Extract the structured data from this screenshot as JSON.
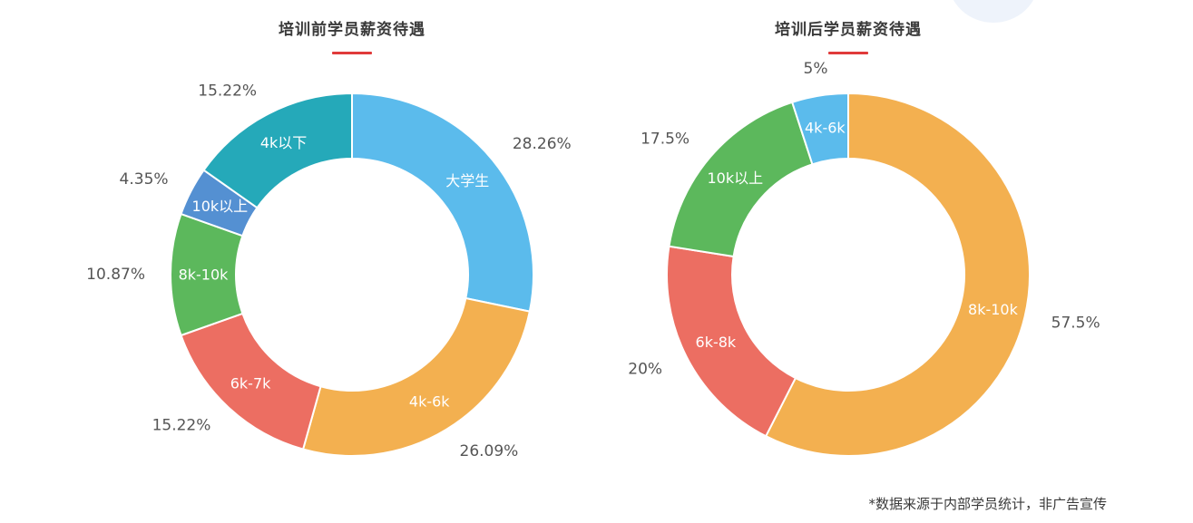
{
  "colors": {
    "blue_light": "#5bbbec",
    "orange": "#f3b050",
    "red": "#ec6e62",
    "green": "#5cb85c",
    "blue": "#5490d2",
    "teal": "#25a9b9",
    "title_underline": "#e03a3a"
  },
  "footnote": "*数据来源于内部学员统计，非广告宣传",
  "chart_data": [
    {
      "type": "pie",
      "title": "培训前学员薪资待遇",
      "slices": [
        {
          "label": "大学生",
          "value": 28.26,
          "value_label": "28.26%",
          "color": "#5bbbec"
        },
        {
          "label": "4k-6k",
          "value": 26.09,
          "value_label": "26.09%",
          "color": "#f3b050"
        },
        {
          "label": "6k-7k",
          "value": 15.22,
          "value_label": "15.22%",
          "color": "#ec6e62"
        },
        {
          "label": "8k-10k",
          "value": 10.87,
          "value_label": "10.87%",
          "color": "#5cb85c"
        },
        {
          "label": "10k以上",
          "value": 4.35,
          "value_label": "4.35%",
          "color": "#5490d2"
        },
        {
          "label": "4k以下",
          "value": 15.22,
          "value_label": "15.22%",
          "color": "#25a9b9"
        }
      ]
    },
    {
      "type": "pie",
      "title": "培训后学员薪资待遇",
      "slices": [
        {
          "label": "8k-10k",
          "value": 57.5,
          "value_label": "57.5%",
          "color": "#f3b050"
        },
        {
          "label": "6k-8k",
          "value": 20,
          "value_label": "20%",
          "color": "#ec6e62"
        },
        {
          "label": "10k以上",
          "value": 17.5,
          "value_label": "17.5%",
          "color": "#5cb85c"
        },
        {
          "label": "4k-6k",
          "value": 5,
          "value_label": "5%",
          "color": "#5bbbec"
        }
      ]
    }
  ]
}
